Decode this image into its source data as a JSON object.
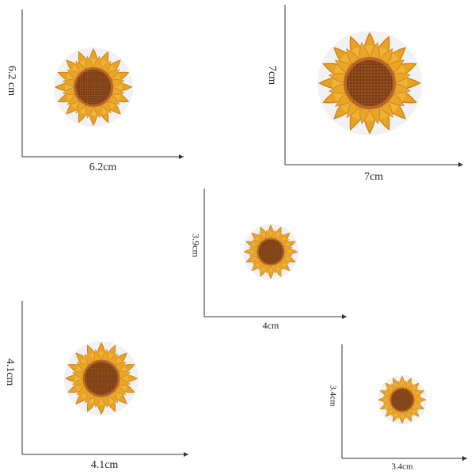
{
  "patches": [
    {
      "height_label": "6.2 cm",
      "width_label": "6.2cm"
    },
    {
      "height_label": "7cm",
      "width_label": "7cm"
    },
    {
      "height_label": "3.9cm",
      "width_label": "4cm"
    },
    {
      "height_label": "4.1cm",
      "width_label": "4.1cm"
    },
    {
      "height_label": "3.4cm",
      "width_label": "3.4cm"
    }
  ]
}
